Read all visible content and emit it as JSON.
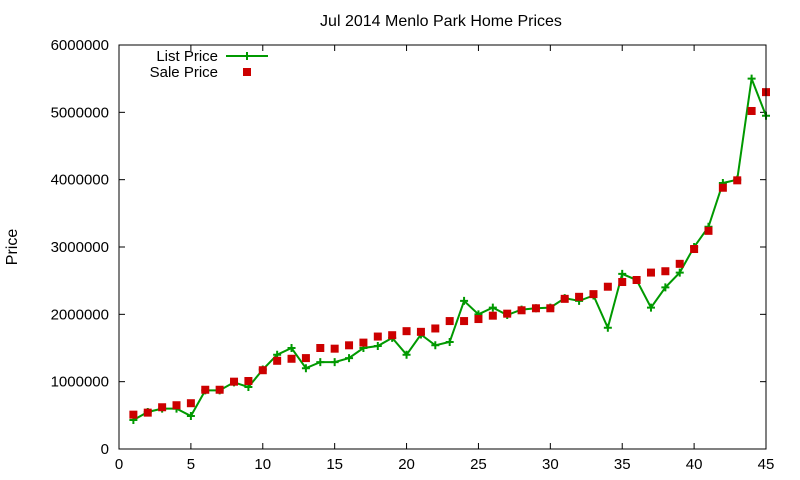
{
  "chart_data": {
    "type": "line",
    "title": "Jul 2014 Menlo Park Home Prices",
    "xlabel": "",
    "ylabel": "Price",
    "xlim": [
      0,
      45
    ],
    "ylim": [
      0,
      6000000
    ],
    "x_ticks": [
      0,
      5,
      10,
      15,
      20,
      25,
      30,
      35,
      40,
      45
    ],
    "y_ticks": [
      0,
      1000000,
      2000000,
      3000000,
      4000000,
      5000000,
      6000000
    ],
    "grid": false,
    "legend_position": "top-left",
    "x": [
      1,
      2,
      3,
      4,
      5,
      6,
      7,
      8,
      9,
      10,
      11,
      12,
      13,
      14,
      15,
      16,
      17,
      18,
      19,
      20,
      21,
      22,
      23,
      24,
      25,
      26,
      27,
      28,
      29,
      30,
      31,
      32,
      33,
      34,
      35,
      36,
      37,
      38,
      39,
      40,
      41,
      42,
      43,
      44,
      45
    ],
    "series": [
      {
        "name": "List Price",
        "style": "line-plus",
        "color": "#009900",
        "values": [
          430000,
          550000,
          600000,
          600000,
          490000,
          870000,
          870000,
          990000,
          920000,
          1180000,
          1400000,
          1500000,
          1200000,
          1290000,
          1290000,
          1350000,
          1500000,
          1530000,
          1650000,
          1400000,
          1700000,
          1540000,
          1590000,
          2200000,
          2000000,
          2100000,
          1990000,
          2070000,
          2090000,
          2100000,
          2240000,
          2200000,
          2280000,
          1800000,
          2600000,
          2510000,
          2100000,
          2400000,
          2620000,
          3000000,
          3300000,
          3950000,
          4000000,
          5500000,
          4950000
        ]
      },
      {
        "name": "Sale Price",
        "style": "square-marker",
        "color": "#cc0000",
        "values": [
          510000,
          540000,
          620000,
          650000,
          680000,
          880000,
          880000,
          1000000,
          1010000,
          1170000,
          1310000,
          1340000,
          1350000,
          1500000,
          1490000,
          1540000,
          1580000,
          1670000,
          1690000,
          1750000,
          1740000,
          1790000,
          1900000,
          1900000,
          1930000,
          1980000,
          2010000,
          2060000,
          2090000,
          2090000,
          2230000,
          2260000,
          2300000,
          2410000,
          2480000,
          2510000,
          2620000,
          2640000,
          2750000,
          2970000,
          3240000,
          3880000,
          3990000,
          5020000,
          5300000
        ]
      }
    ]
  }
}
